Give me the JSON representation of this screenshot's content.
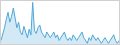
{
  "chart_data": {
    "type": "area",
    "values": [
      5,
      9,
      14,
      20,
      25,
      18,
      22,
      28,
      20,
      14,
      18,
      11,
      9,
      15,
      11,
      7,
      13,
      9,
      32,
      12,
      10,
      14,
      16,
      11,
      9,
      7,
      11,
      9,
      7,
      9,
      11,
      7,
      9,
      5,
      7,
      9,
      11,
      7,
      5,
      7,
      5,
      9,
      7,
      5,
      7,
      9,
      11,
      7,
      5,
      3,
      7,
      5,
      9,
      7,
      5,
      7,
      5,
      3,
      5,
      7,
      5,
      3,
      5,
      7,
      9,
      5,
      3,
      5
    ],
    "color": "#4fa8d8",
    "xlim": [
      0,
      67
    ],
    "ylim": [
      2.5,
      33
    ],
    "grid": false,
    "tick_labels": false
  }
}
